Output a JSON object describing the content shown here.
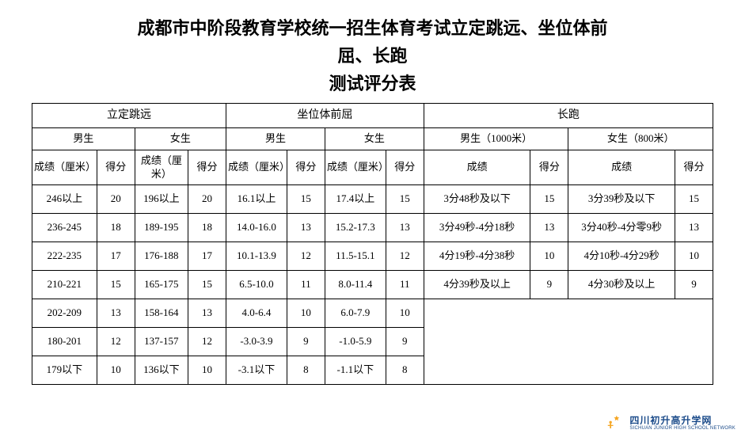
{
  "title_line1": "成都市中阶段教育学校统一招生体育考试立定跳远、坐位体前",
  "title_line2": "屈、长跑",
  "title_line3": "测试评分表",
  "table": {
    "border_color": "#000000",
    "background_color": "#ffffff",
    "text_color": "#000000",
    "header_fontsize": 13,
    "cell_fontsize": 13,
    "groups": [
      {
        "label": "立定跳远",
        "sub": [
          {
            "label": "男生",
            "cols": [
              "成绩（厘米）",
              "得分"
            ]
          },
          {
            "label": "女生",
            "cols": [
              "成绩（厘米）",
              "得分"
            ]
          }
        ]
      },
      {
        "label": "坐位体前屈",
        "sub": [
          {
            "label": "男生",
            "cols": [
              "成绩（厘米）",
              "得分"
            ]
          },
          {
            "label": "女生",
            "cols": [
              "成绩（厘米）",
              "得分"
            ]
          }
        ]
      },
      {
        "label": "长跑",
        "sub": [
          {
            "label": "男生（1000米）",
            "cols": [
              "成绩",
              "得分"
            ]
          },
          {
            "label": "女生（800米）",
            "cols": [
              "成绩",
              "得分"
            ]
          }
        ]
      }
    ],
    "rows": [
      [
        "246以上",
        "20",
        "196以上",
        "20",
        "16.1以上",
        "15",
        "17.4以上",
        "15",
        "3分48秒及以下",
        "15",
        "3分39秒及以下",
        "15"
      ],
      [
        "236-245",
        "18",
        "189-195",
        "18",
        "14.0-16.0",
        "13",
        "15.2-17.3",
        "13",
        "3分49秒-4分18秒",
        "13",
        "3分40秒-4分零9秒",
        "13"
      ],
      [
        "222-235",
        "17",
        "176-188",
        "17",
        "10.1-13.9",
        "12",
        "11.5-15.1",
        "12",
        "4分19秒-4分38秒",
        "10",
        "4分10秒-4分29秒",
        "10"
      ],
      [
        "210-221",
        "15",
        "165-175",
        "15",
        "6.5-10.0",
        "11",
        "8.0-11.4",
        "11",
        "4分39秒及以上",
        "9",
        "4分30秒及以上",
        "9"
      ],
      [
        "202-209",
        "13",
        "158-164",
        "13",
        "4.0-6.4",
        "10",
        "6.0-7.9",
        "10",
        "",
        "",
        "",
        ""
      ],
      [
        "180-201",
        "12",
        "137-157",
        "12",
        "-3.0-3.9",
        "9",
        "-1.0-5.9",
        "9",
        "",
        "",
        "",
        ""
      ],
      [
        "179以下",
        "10",
        "136以下",
        "10",
        "-3.1以下",
        "8",
        "-1.1以下",
        "8",
        "",
        "",
        "",
        ""
      ]
    ],
    "long_run_rowspan": 4,
    "col_widths_pct": [
      8.5,
      5,
      7,
      5,
      8,
      5,
      8,
      5,
      14,
      5,
      14,
      5
    ]
  },
  "logo": {
    "cn": "四川初升高升学网",
    "en": "SICHUAN JUNIOR HIGH SCHOOL NETWORK",
    "crescent_color": "#1b4b8a",
    "star_color": "#f5a623",
    "accent_color": "#1b4b8a"
  }
}
